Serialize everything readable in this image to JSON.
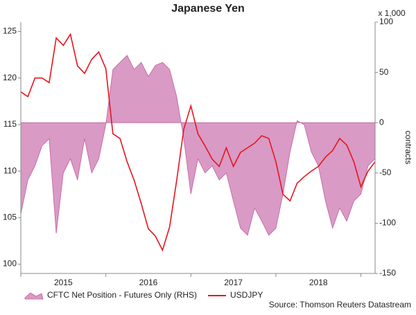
{
  "chart_data": {
    "type": "combo",
    "title": "Japanese Yen",
    "y2_unit_note": "x 1,000",
    "y2label": "contracts",
    "source": "Source: Thomson Reuters Datastream",
    "categories": [
      null,
      null,
      null,
      null,
      null,
      null,
      "2015",
      null,
      null,
      null,
      null,
      null,
      null,
      null,
      null,
      null,
      null,
      null,
      "2016",
      null,
      null,
      null,
      null,
      null,
      null,
      null,
      null,
      null,
      null,
      null,
      "2017",
      null,
      null,
      null,
      null,
      null,
      null,
      null,
      null,
      null,
      null,
      null,
      "2018",
      null,
      null,
      null,
      null,
      null,
      null,
      null,
      null
    ],
    "series": [
      {
        "name": "CFTC Net Position - Futures Only (RHS)",
        "type": "area",
        "axis": "y2",
        "color": "#d99ac5",
        "edge": "#c0609a",
        "values": [
          -91,
          -57,
          -43,
          -23,
          -16,
          -110,
          -50,
          -36,
          -57,
          -16,
          -50,
          -36,
          -2,
          53,
          60,
          67,
          53,
          60,
          46,
          57,
          60,
          53,
          26,
          -16,
          -71,
          -36,
          -50,
          -43,
          -57,
          -50,
          -78,
          -105,
          -112,
          -85,
          -98,
          -112,
          -105,
          -71,
          -29,
          2,
          -2,
          -29,
          -43,
          -78,
          -105,
          -85,
          -98,
          -78,
          -71,
          -43,
          -36
        ]
      },
      {
        "name": "USDJPY",
        "type": "line",
        "axis": "y",
        "color": "#e8141c",
        "values": [
          118.5,
          118,
          120,
          120,
          119.5,
          124.3,
          123.5,
          124.7,
          121.3,
          120.5,
          122,
          122.8,
          121,
          114,
          113.5,
          111,
          109,
          106.5,
          103.8,
          103,
          101.5,
          104,
          109,
          114.5,
          117,
          114,
          112.7,
          111.3,
          110.5,
          112.5,
          110.5,
          112,
          112.5,
          113,
          113.8,
          113.5,
          111,
          107.5,
          106.8,
          108.7,
          109.4,
          110,
          110.5,
          111.5,
          112.2,
          113.5,
          112.8,
          111,
          108.3,
          110,
          111
        ]
      }
    ],
    "ylim": [
      99,
      126
    ],
    "yticks": [
      100,
      105,
      110,
      115,
      120,
      125
    ],
    "y2lim": [
      -150,
      100
    ],
    "y2ticks": [
      -150,
      -100,
      -50,
      0,
      50,
      100
    ]
  }
}
